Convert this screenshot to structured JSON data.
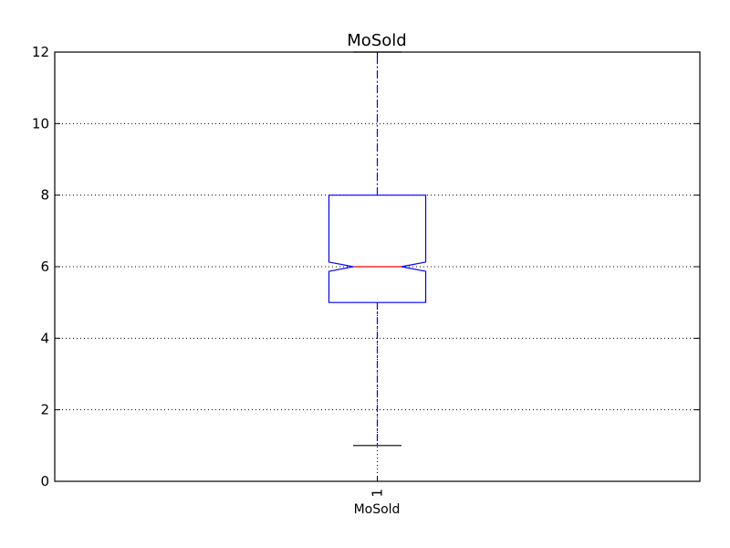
{
  "chart_data": {
    "type": "box",
    "title": "MoSold",
    "xlabel": "MoSold",
    "ylabel": "",
    "categories": [
      "1"
    ],
    "ylim": [
      0,
      12
    ],
    "yticks": [
      0,
      2,
      4,
      6,
      8,
      10,
      12
    ],
    "grid": true,
    "notched": true,
    "boxes": [
      {
        "category": "1",
        "whisker_low": 1,
        "q1": 5,
        "median": 6,
        "q3": 8,
        "whisker_high": 12,
        "notch_low": 5.87,
        "notch_high": 6.13
      }
    ],
    "colors": {
      "box": "#0000ff",
      "median": "#ff0000",
      "whisker": "#0000ff",
      "cap": "#000000",
      "grid": "#000000"
    }
  }
}
